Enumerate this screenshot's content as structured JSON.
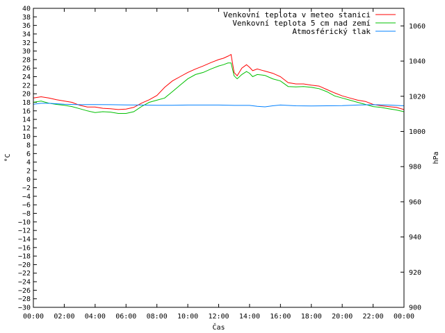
{
  "chart_data": {
    "type": "line",
    "title": "",
    "xlabel": "Čas",
    "ylabel": "°C",
    "y2label": "hPa",
    "grid": false,
    "legend_position": "top-right",
    "ylim": [
      -30,
      40
    ],
    "y2lim": [
      900,
      1070
    ],
    "xlim": [
      "00:00",
      "24:00"
    ],
    "y_ticks": [
      40,
      38,
      36,
      34,
      32,
      30,
      28,
      26,
      24,
      22,
      20,
      18,
      16,
      14,
      12,
      10,
      8,
      6,
      4,
      2,
      0,
      -2,
      -4,
      -6,
      -8,
      -10,
      -12,
      -14,
      -16,
      -18,
      -20,
      -22,
      -24,
      -26,
      -28,
      -30
    ],
    "y_tick_labels": [
      "40",
      "38",
      "36",
      "34",
      "32",
      "30",
      "28",
      "26",
      "24",
      "22",
      "20",
      "18",
      "16",
      "14",
      "12",
      "10",
      "8",
      "6",
      "4",
      "2",
      "0",
      "−2",
      "−4",
      "−6",
      "−8",
      "−10",
      "−12",
      "−14",
      "−16",
      "−18",
      "−20",
      "−22",
      "−24",
      "−26",
      "−28",
      "−30"
    ],
    "y2_ticks": [
      1060,
      1040,
      1020,
      1000,
      980,
      960,
      940,
      920,
      900
    ],
    "y2_tick_labels": [
      "1060",
      "1040",
      "1020",
      "1000",
      "980",
      "960",
      "940",
      "920",
      "900"
    ],
    "x_ticks": [
      0,
      2,
      4,
      6,
      8,
      10,
      12,
      14,
      16,
      18,
      20,
      22,
      24
    ],
    "x_tick_labels": [
      "00:00",
      "02:00",
      "04:00",
      "06:00",
      "08:00",
      "10:00",
      "12:00",
      "14:00",
      "16:00",
      "18:00",
      "20:00",
      "22:00",
      "00:00"
    ],
    "series": [
      {
        "name": "Venkovní teplota v meteo stanici",
        "color": "#ff0000",
        "axis": "left",
        "x": [
          0,
          0.5,
          1,
          1.5,
          2,
          2.5,
          3,
          3.5,
          4,
          4.5,
          5,
          5.5,
          6,
          6.5,
          7,
          7.5,
          8,
          8.5,
          9,
          9.5,
          10,
          10.5,
          11,
          11.5,
          12,
          12.3,
          12.6,
          12.8,
          13,
          13.2,
          13.5,
          13.8,
          14,
          14.2,
          14.5,
          14.8,
          15,
          15.5,
          16,
          16.5,
          17,
          17.5,
          18,
          18.5,
          19,
          19.5,
          20,
          20.5,
          21,
          21.5,
          22,
          22.5,
          23,
          23.5,
          24
        ],
        "values": [
          19,
          19.3,
          19,
          18.6,
          18.3,
          18,
          17.3,
          16.9,
          16.9,
          16.6,
          16.5,
          16.3,
          16.4,
          16.8,
          17.8,
          18.6,
          19.6,
          21.5,
          23,
          24,
          25,
          25.8,
          26.5,
          27.3,
          28,
          28.3,
          28.8,
          29.2,
          25,
          24.2,
          26,
          26.8,
          26.2,
          25.4,
          25.8,
          25.5,
          25.3,
          24.8,
          24,
          22.6,
          22.3,
          22.3,
          22,
          21.8,
          21,
          20.2,
          19.5,
          19,
          18.5,
          18.2,
          17.5,
          17.2,
          17,
          16.8,
          16.3
        ]
      },
      {
        "name": "Venkovní teplota 5 cm nad zemí",
        "color": "#00c000",
        "axis": "left",
        "x": [
          0,
          0.5,
          1,
          1.5,
          2,
          2.5,
          3,
          3.5,
          4,
          4.5,
          5,
          5.5,
          6,
          6.5,
          7,
          7.5,
          8,
          8.5,
          9,
          9.5,
          10,
          10.5,
          11,
          11.5,
          12,
          12.3,
          12.6,
          12.8,
          13,
          13.2,
          13.5,
          13.8,
          14,
          14.2,
          14.5,
          14.8,
          15,
          15.5,
          16,
          16.5,
          17,
          17.5,
          18,
          18.5,
          19,
          19.5,
          20,
          20.5,
          21,
          21.5,
          22,
          22.5,
          23,
          23.5,
          24
        ],
        "values": [
          18,
          18.3,
          17.8,
          17.5,
          17.3,
          17,
          16.5,
          16,
          15.6,
          15.8,
          15.7,
          15.4,
          15.4,
          15.8,
          17,
          18,
          18.5,
          19,
          20.5,
          22,
          23.5,
          24.5,
          25,
          25.8,
          26.5,
          26.8,
          27.2,
          27.2,
          24.2,
          23.5,
          24.5,
          25.2,
          24.8,
          24,
          24.5,
          24.4,
          24.3,
          23.5,
          23,
          21.7,
          21.6,
          21.7,
          21.5,
          21.2,
          20.5,
          19.5,
          19,
          18.5,
          18,
          17.5,
          17,
          16.8,
          16.5,
          16.2,
          15.8
        ]
      },
      {
        "name": "Atmosférický tlak",
        "color": "#0080ff",
        "axis": "right",
        "x": [
          0,
          0.5,
          1,
          2,
          3,
          4,
          5,
          6,
          7,
          8,
          9,
          10,
          11,
          12,
          13,
          14,
          14.5,
          15,
          15.5,
          16,
          17,
          18,
          19,
          20,
          21,
          22,
          23,
          24
        ],
        "values": [
          1015.5,
          1016,
          1016,
          1015.5,
          1015.2,
          1015.3,
          1015.2,
          1015.1,
          1015,
          1014.9,
          1014.9,
          1015,
          1015,
          1015,
          1014.8,
          1014.8,
          1014.3,
          1014,
          1014.6,
          1015,
          1014.6,
          1014.5,
          1014.6,
          1014.7,
          1015,
          1015.2,
          1015,
          1014.6
        ]
      }
    ]
  }
}
